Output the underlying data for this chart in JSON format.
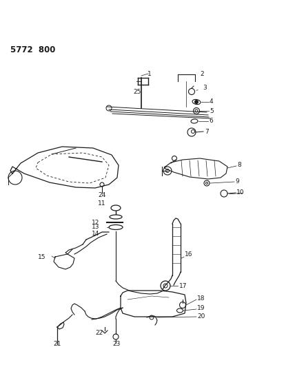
{
  "title_code": "5772  800",
  "background_color": "#ffffff",
  "line_color": "#1a1a1a"
}
